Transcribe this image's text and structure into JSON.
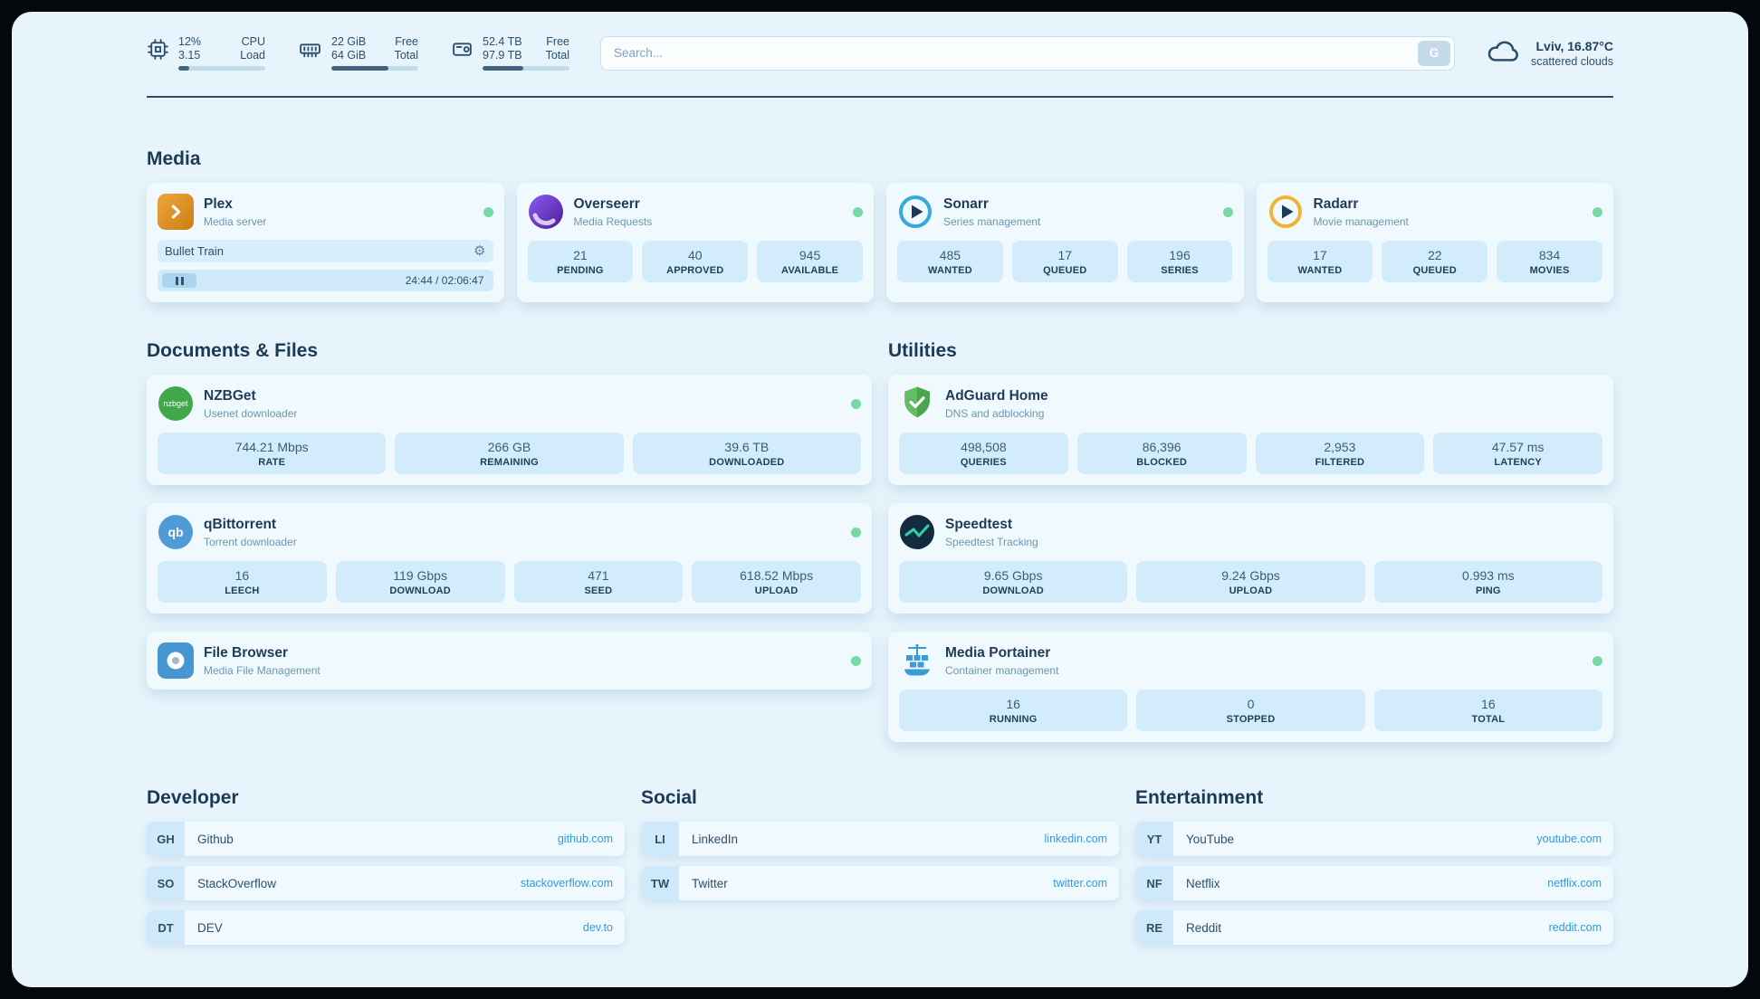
{
  "colors": {
    "background": "#e7f4fc",
    "card": "#f0f9fe",
    "tile": "#d3ecfb",
    "heading_text": "#1d3a54",
    "muted_text": "#6d96b2",
    "link": "#2e9be0",
    "status_online": "#77d9a3"
  },
  "topbar": {
    "cpu": {
      "value1": "12%",
      "label1": "CPU",
      "value2": "3.15",
      "label2": "Load",
      "bar_percent": 12
    },
    "memory": {
      "value1": "22 GiB",
      "label1": "Free",
      "value2": "64 GiB",
      "label2": "Total",
      "bar_percent": 66
    },
    "disk": {
      "value1": "52.4 TB",
      "label1": "Free",
      "value2": "97.9 TB",
      "label2": "Total",
      "bar_percent": 47
    },
    "search": {
      "placeholder": "Search...",
      "button_label": "G"
    },
    "weather": {
      "location": "Lviv, 16.87°C",
      "condition": "scattered clouds"
    }
  },
  "media": {
    "title": "Media",
    "plex": {
      "name": "Plex",
      "desc": "Media server",
      "now_playing": "Bullet Train",
      "time": "24:44 / 02:06:47"
    },
    "overseerr": {
      "name": "Overseerr",
      "desc": "Media Requests",
      "stats": [
        {
          "value": "21",
          "label": "PENDING"
        },
        {
          "value": "40",
          "label": "APPROVED"
        },
        {
          "value": "945",
          "label": "AVAILABLE"
        }
      ]
    },
    "sonarr": {
      "name": "Sonarr",
      "desc": "Series management",
      "stats": [
        {
          "value": "485",
          "label": "WANTED"
        },
        {
          "value": "17",
          "label": "QUEUED"
        },
        {
          "value": "196",
          "label": "SERIES"
        }
      ]
    },
    "radarr": {
      "name": "Radarr",
      "desc": "Movie management",
      "stats": [
        {
          "value": "17",
          "label": "WANTED"
        },
        {
          "value": "22",
          "label": "QUEUED"
        },
        {
          "value": "834",
          "label": "MOVIES"
        }
      ]
    }
  },
  "documents": {
    "title": "Documents & Files",
    "nzbget": {
      "name": "NZBGet",
      "desc": "Usenet downloader",
      "icon_text": "nzbget",
      "stats": [
        {
          "value": "744.21 Mbps",
          "label": "RATE"
        },
        {
          "value": "266 GB",
          "label": "REMAINING"
        },
        {
          "value": "39.6 TB",
          "label": "DOWNLOADED"
        }
      ]
    },
    "qbittorrent": {
      "name": "qBittorrent",
      "desc": "Torrent downloader",
      "icon_text": "qb",
      "stats": [
        {
          "value": "16",
          "label": "LEECH"
        },
        {
          "value": "119 Gbps",
          "label": "DOWNLOAD"
        },
        {
          "value": "471",
          "label": "SEED"
        },
        {
          "value": "618.52 Mbps",
          "label": "UPLOAD"
        }
      ]
    },
    "filebrowser": {
      "name": "File Browser",
      "desc": "Media File Management"
    }
  },
  "utilities": {
    "title": "Utilities",
    "adguard": {
      "name": "AdGuard Home",
      "desc": "DNS and adblocking",
      "stats": [
        {
          "value": "498,508",
          "label": "QUERIES"
        },
        {
          "value": "86,396",
          "label": "BLOCKED"
        },
        {
          "value": "2,953",
          "label": "FILTERED"
        },
        {
          "value": "47.57 ms",
          "label": "LATENCY"
        }
      ]
    },
    "speedtest": {
      "name": "Speedtest",
      "desc": "Speedtest Tracking",
      "stats": [
        {
          "value": "9.65 Gbps",
          "label": "DOWNLOAD"
        },
        {
          "value": "9.24 Gbps",
          "label": "UPLOAD"
        },
        {
          "value": "0.993 ms",
          "label": "PING"
        }
      ]
    },
    "portainer": {
      "name": "Media Portainer",
      "desc": "Container management",
      "stats": [
        {
          "value": "16",
          "label": "RUNNING"
        },
        {
          "value": "0",
          "label": "STOPPED"
        },
        {
          "value": "16",
          "label": "TOTAL"
        }
      ]
    }
  },
  "bookmarks": {
    "developer": {
      "title": "Developer",
      "links": [
        {
          "abbr": "GH",
          "name": "Github",
          "url": "github.com"
        },
        {
          "abbr": "SO",
          "name": "StackOverflow",
          "url": "stackoverflow.com"
        },
        {
          "abbr": "DT",
          "name": "DEV",
          "url": "dev.to"
        }
      ]
    },
    "social": {
      "title": "Social",
      "links": [
        {
          "abbr": "LI",
          "name": "LinkedIn",
          "url": "linkedin.com"
        },
        {
          "abbr": "TW",
          "name": "Twitter",
          "url": "twitter.com"
        }
      ]
    },
    "entertainment": {
      "title": "Entertainment",
      "links": [
        {
          "abbr": "YT",
          "name": "YouTube",
          "url": "youtube.com"
        },
        {
          "abbr": "NF",
          "name": "Netflix",
          "url": "netflix.com"
        },
        {
          "abbr": "RE",
          "name": "Reddit",
          "url": "reddit.com"
        }
      ]
    }
  }
}
